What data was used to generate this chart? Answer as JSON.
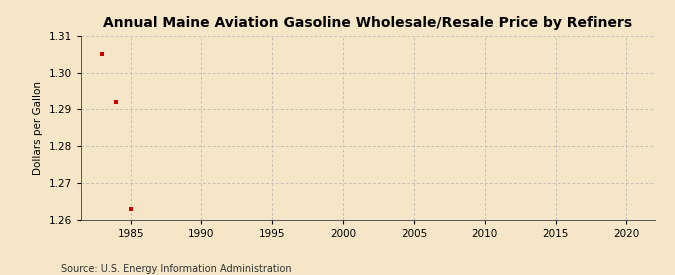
{
  "title": "Annual Maine Aviation Gasoline Wholesale/Resale Price by Refiners",
  "ylabel": "Dollars per Gallon",
  "source": "Source: U.S. Energy Information Administration",
  "data_x": [
    1983,
    1984,
    1985
  ],
  "data_y": [
    1.305,
    1.292,
    1.263
  ],
  "marker_color": "#cc0000",
  "marker_size": 3.5,
  "xlim": [
    1981.5,
    2022
  ],
  "ylim": [
    1.26,
    1.31
  ],
  "xticks": [
    1985,
    1990,
    1995,
    2000,
    2005,
    2010,
    2015,
    2020
  ],
  "yticks": [
    1.26,
    1.27,
    1.28,
    1.29,
    1.3,
    1.31
  ],
  "background_color": "#f5e6c8",
  "grid_color": "#b0b0b0",
  "title_fontsize": 10,
  "label_fontsize": 7.5,
  "tick_fontsize": 7.5,
  "source_fontsize": 7
}
